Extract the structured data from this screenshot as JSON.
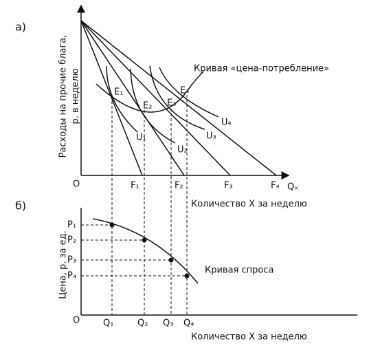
{
  "panel_a": {
    "label": "а)",
    "y_axis_label": [
      "Расходы на прочие блага,",
      "р. в неделю"
    ],
    "origin": "O",
    "x_axis_symbol": "Qₓ",
    "x_axis_label": "Количество X за неделю",
    "curve_label": "Кривая «цена-потребление»",
    "points": [
      "E₁",
      "E₂",
      "E₃",
      "E₄"
    ],
    "curves": [
      "U₁",
      "U₂",
      "U₃",
      "U₄"
    ],
    "intercepts": [
      "F₁",
      "F₂",
      "F₃",
      "F₄"
    ]
  },
  "panel_b": {
    "label": "б)",
    "y_axis_label": "Цена, р. за ед.",
    "origin": "O",
    "x_axis_label": "Количество X за неделю",
    "curve_label": "Кривая спроса",
    "prices": [
      "P₁",
      "P₂",
      "P₃",
      "P₄"
    ],
    "quantities": [
      "Q₁",
      "Q₂",
      "Q₃",
      "Q₄"
    ]
  }
}
